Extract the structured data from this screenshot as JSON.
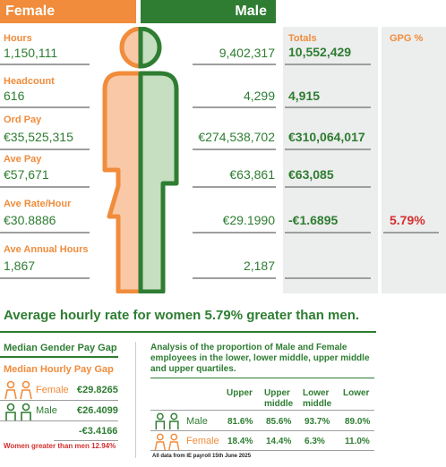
{
  "header": {
    "female": "Female",
    "male": "Male"
  },
  "columns": {
    "totals": "Totals",
    "gpg": "GPG %"
  },
  "rows": [
    {
      "label": "Hours",
      "female": "1,150,111",
      "male": "9,402,317",
      "total": "10,552,429",
      "gpg": ""
    },
    {
      "label": "Headcount",
      "female": "616",
      "male": "4,299",
      "total": "4,915",
      "gpg": ""
    },
    {
      "label": "Ord Pay",
      "female": "€35,525,315",
      "male": "€274,538,702",
      "total": "€310,064,017",
      "gpg": ""
    },
    {
      "label": "Ave Pay",
      "female": "€57,671",
      "male": "€63,861",
      "total": "€63,085",
      "gpg": ""
    },
    {
      "label": "Ave Rate/Hour",
      "female": "€30.8886",
      "male": "€29.1990",
      "total": "-€1.6895",
      "gpg": "5.79%"
    },
    {
      "label": "Ave Annual Hours",
      "female": "1,867",
      "male": "2,187",
      "total": "",
      "gpg": ""
    }
  ],
  "headline": "Average hourly rate for women 5.79% greater than men.",
  "median": {
    "title": "Median Gender Pay Gap",
    "subtitle": "Median Hourly Pay Gap",
    "female_label": "Female",
    "female_value": "€29.8265",
    "male_label": "Male",
    "male_value": "€26.4099",
    "diff": "-€3.4166",
    "note": "Women greater than men 12.94%"
  },
  "quartiles": {
    "title": "Analysis of the proportion of Male and Female employees in the lower, lower middle, upper middle and upper quartiles.",
    "headers": [
      "Upper",
      "Upper middle",
      "Lower middle",
      "Lower"
    ],
    "male_label": "Male",
    "male": [
      "81.6%",
      "85.6%",
      "93.7%",
      "89.0%"
    ],
    "female_label": "Female",
    "female": [
      "18.4%",
      "14.4%",
      "6.3%",
      "11.0%"
    ]
  },
  "footnote": "All data from IE payroll 15th June 2025",
  "colors": {
    "female": "#f08c3c",
    "male": "#2e7d32",
    "gap": "#d32f2f",
    "panel": "#eceded"
  }
}
